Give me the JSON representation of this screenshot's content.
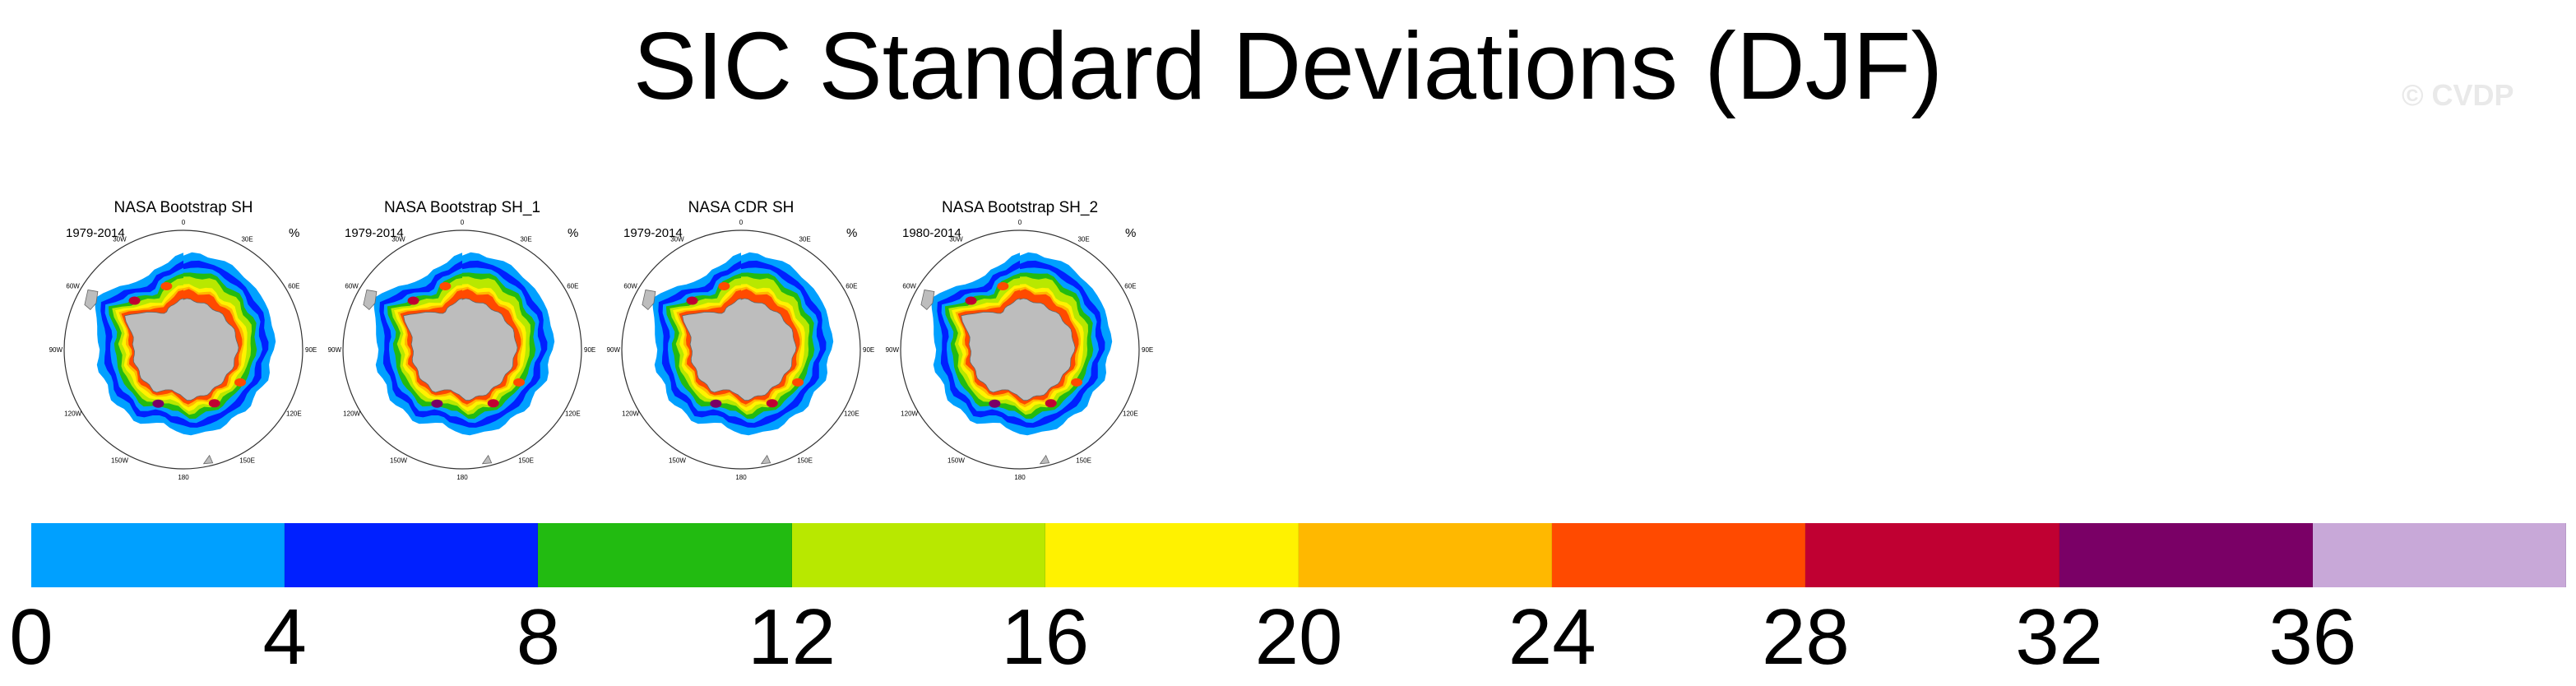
{
  "title": "SIC Standard Deviations (DJF)",
  "watermark": "© CVDP",
  "panels": [
    {
      "title": "NASA Bootstrap SH",
      "years": "1979-2014",
      "units": "%"
    },
    {
      "title": "NASA Bootstrap SH_1",
      "years": "1979-2014",
      "units": "%"
    },
    {
      "title": "NASA CDR SH",
      "years": "1979-2014",
      "units": "%"
    },
    {
      "title": "NASA Bootstrap SH_2",
      "years": "1980-2014",
      "units": "%"
    }
  ],
  "longitude_labels": [
    "0",
    "30E",
    "60E",
    "90E",
    "120E",
    "150E",
    "180",
    "150W",
    "120W",
    "90W",
    "60W",
    "30W"
  ],
  "land_color": "#bdbdbd",
  "colorbar": {
    "levels": [
      "0",
      "4",
      "8",
      "12",
      "16",
      "20",
      "24",
      "28",
      "32",
      "36"
    ],
    "colors": [
      "#00a0ff",
      "#0020ff",
      "#22bb11",
      "#b8e800",
      "#fff200",
      "#ffb800",
      "#ff4a00",
      "#c00032",
      "#7a0066",
      "#c8a8d8"
    ]
  }
}
